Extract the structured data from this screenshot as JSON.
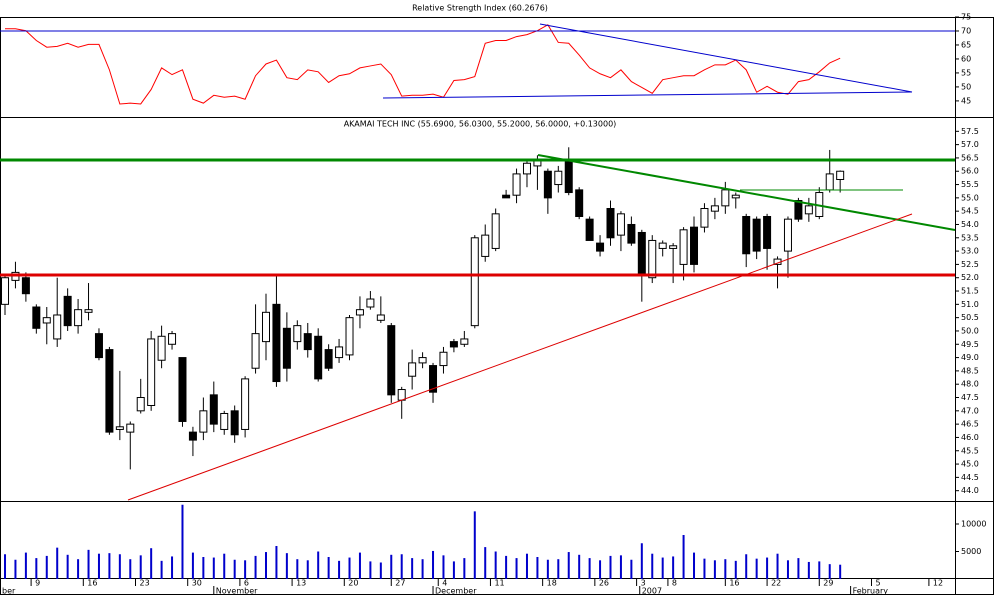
{
  "chart_data": [
    {
      "type": "line",
      "title": "Relative Strength Index (60.2676)",
      "x": [
        0,
        1,
        2,
        3,
        4,
        5,
        6,
        7,
        8,
        9,
        10,
        11,
        12,
        13,
        14,
        15,
        16,
        17,
        18,
        19,
        20,
        21,
        22,
        23,
        24,
        25,
        26,
        27,
        28,
        29,
        30,
        31,
        32,
        33,
        34,
        35,
        36,
        37,
        38,
        39,
        40,
        41,
        42,
        43,
        44,
        45,
        46,
        47,
        48,
        49,
        50,
        51,
        52,
        53,
        54,
        55,
        56,
        57,
        58,
        59,
        60,
        61,
        62,
        63,
        64,
        65,
        66,
        67,
        68,
        69,
        70,
        71,
        72,
        73,
        74,
        75,
        76,
        77,
        78,
        79,
        80
      ],
      "series": [
        {
          "color": "#ff0000",
          "values": [
            70.8,
            70.8,
            70.1,
            66.6,
            64.2,
            64.5,
            65.6,
            64.2,
            65.2,
            65.2,
            56.1,
            43.9,
            44.2,
            43.9,
            49.1,
            56.8,
            54.4,
            56.1,
            45.6,
            44.2,
            47.0,
            46.3,
            46.7,
            45.6,
            54.0,
            58.2,
            59.6,
            53.3,
            52.6,
            56.1,
            55.4,
            51.6,
            54.0,
            54.7,
            56.8,
            57.5,
            58.2,
            54.4,
            46.7,
            47.0,
            47.0,
            47.4,
            46.3,
            52.3,
            52.6,
            53.7,
            65.6,
            66.6,
            66.6,
            68.0,
            68.7,
            70.1,
            72.2,
            65.9,
            65.6,
            61.4,
            56.8,
            54.7,
            53.3,
            56.1,
            51.9,
            49.8,
            47.7,
            52.6,
            53.3,
            54.0,
            54.0,
            56.1,
            57.9,
            57.9,
            59.6,
            56.1,
            48.1,
            50.2,
            48.1,
            47.4,
            51.9,
            52.6,
            55.4,
            58.6,
            60.27
          ]
        }
      ],
      "xlim": [
        -0.48,
        91.0
      ],
      "ylim": [
        39.6,
        75
      ],
      "yticks": [
        45,
        50,
        55,
        60,
        65,
        70,
        75
      ]
    },
    {
      "type": "candlestick",
      "title": "AKAMAI TECH INC (55.6900, 56.0300, 55.2000, 56.0000, +0.13000)",
      "x": [
        0,
        1,
        2,
        3,
        4,
        5,
        6,
        7,
        8,
        9,
        10,
        11,
        12,
        13,
        14,
        15,
        16,
        17,
        18,
        19,
        20,
        21,
        22,
        23,
        24,
        25,
        26,
        27,
        28,
        29,
        30,
        31,
        32,
        33,
        34,
        35,
        36,
        37,
        38,
        39,
        40,
        41,
        42,
        43,
        44,
        45,
        46,
        47,
        48,
        49,
        50,
        51,
        52,
        53,
        54,
        55,
        56,
        57,
        58,
        59,
        60,
        61,
        62,
        63,
        64,
        65,
        66,
        67,
        68,
        69,
        70,
        71,
        72,
        73,
        74,
        75,
        76,
        77,
        78,
        79,
        80
      ],
      "open": [
        51.0,
        51.9,
        52.0,
        50.9,
        50.3,
        49.7,
        51.3,
        50.2,
        50.7,
        49.9,
        49.3,
        46.3,
        46.2,
        47.0,
        47.2,
        48.9,
        49.5,
        49.0,
        46.2,
        46.2,
        47.6,
        46.3,
        47.0,
        46.3,
        48.6,
        49.6,
        51.0,
        50.1,
        49.6,
        49.9,
        49.8,
        49.3,
        49.0,
        49.1,
        50.6,
        50.9,
        50.4,
        50.2,
        47.4,
        48.3,
        48.8,
        48.7,
        48.7,
        49.6,
        49.5,
        50.2,
        52.8,
        53.1,
        55.1,
        55.1,
        55.9,
        56.2,
        56.0,
        55.5,
        56.4,
        55.3,
        54.2,
        53.3,
        54.6,
        53.6,
        54.0,
        53.7,
        52.0,
        53.1,
        53.1,
        52.5,
        53.9,
        53.9,
        54.5,
        54.7,
        55.0,
        54.3,
        54.2,
        54.3,
        52.5,
        53.0,
        54.9,
        54.4,
        54.3,
        55.3,
        55.69
      ],
      "high": [
        52.1,
        52.6,
        52.2,
        51.0,
        50.9,
        52.0,
        51.6,
        51.2,
        51.8,
        50.1,
        49.4,
        48.5,
        46.6,
        48.2,
        50.0,
        50.2,
        50.0,
        49.0,
        46.4,
        47.5,
        48.1,
        47.0,
        47.2,
        48.3,
        51.0,
        51.4,
        52.1,
        50.7,
        50.4,
        50.3,
        50.1,
        49.5,
        49.7,
        50.6,
        51.3,
        51.5,
        51.3,
        50.3,
        47.9,
        49.3,
        49.2,
        48.8,
        49.4,
        49.7,
        50.0,
        53.6,
        54.0,
        54.6,
        55.3,
        56.1,
        56.4,
        56.6,
        56.1,
        56.2,
        56.9,
        55.4,
        54.3,
        53.6,
        54.9,
        54.5,
        54.3,
        53.8,
        53.6,
        53.4,
        53.3,
        53.9,
        54.3,
        54.8,
        55.0,
        55.6,
        55.2,
        54.4,
        54.3,
        54.4,
        52.8,
        54.3,
        55.0,
        55.0,
        55.4,
        56.8,
        56.03
      ],
      "low": [
        50.6,
        51.6,
        51.1,
        49.9,
        49.5,
        49.4,
        50.0,
        49.9,
        50.4,
        48.9,
        46.1,
        45.9,
        44.8,
        46.9,
        47.0,
        48.6,
        49.3,
        46.4,
        45.3,
        45.9,
        46.2,
        46.1,
        45.8,
        46.0,
        48.4,
        48.9,
        47.9,
        48.1,
        49.3,
        49.0,
        48.1,
        48.5,
        48.8,
        48.9,
        50.1,
        50.8,
        50.3,
        47.3,
        46.7,
        47.8,
        48.6,
        47.3,
        48.4,
        49.2,
        49.4,
        50.1,
        52.6,
        53.0,
        55.0,
        54.8,
        55.4,
        55.3,
        54.4,
        55.2,
        55.1,
        54.2,
        53.4,
        52.8,
        53.2,
        53.0,
        53.2,
        51.1,
        51.8,
        52.8,
        51.8,
        51.9,
        52.2,
        53.7,
        54.2,
        54.4,
        54.6,
        52.4,
        52.7,
        52.3,
        51.6,
        52.0,
        54.1,
        54.1,
        54.2,
        55.2,
        55.2
      ],
      "close": [
        52.0,
        52.2,
        51.4,
        50.1,
        50.5,
        50.6,
        50.2,
        50.8,
        50.8,
        49.0,
        46.2,
        46.4,
        46.5,
        47.5,
        49.7,
        49.8,
        49.9,
        46.6,
        45.9,
        47.0,
        46.5,
        46.9,
        46.1,
        48.2,
        49.9,
        50.7,
        48.1,
        48.6,
        50.2,
        49.3,
        48.2,
        48.6,
        49.4,
        50.5,
        50.8,
        51.2,
        50.6,
        47.6,
        47.8,
        48.8,
        49.0,
        47.7,
        49.2,
        49.4,
        49.7,
        53.5,
        53.6,
        54.4,
        55.0,
        55.9,
        56.3,
        56.4,
        55.0,
        56.0,
        55.2,
        54.3,
        53.4,
        53.0,
        53.5,
        54.4,
        53.3,
        52.1,
        53.4,
        53.3,
        53.2,
        53.8,
        52.5,
        54.6,
        54.7,
        55.3,
        55.1,
        52.9,
        53.0,
        53.1,
        52.7,
        54.2,
        54.2,
        54.7,
        55.2,
        55.9,
        56.0
      ],
      "up_color": "#ffffff",
      "down_color": "#000000",
      "xlim": [
        -0.48,
        91.0
      ],
      "ylim": [
        43.65,
        58.0
      ],
      "yticks": [
        {
          "value": 44,
          "label": "44.0"
        },
        44.5,
        {
          "value": 45,
          "label": "45.0"
        },
        45.5,
        {
          "value": 46,
          "label": "46.0"
        },
        46.5,
        {
          "value": 47,
          "label": "47.0"
        },
        47.5,
        {
          "value": 48,
          "label": "48.0"
        },
        48.5,
        {
          "value": 49,
          "label": "49.0"
        },
        49.5,
        {
          "value": 50,
          "label": "50.0"
        },
        50.5,
        {
          "value": 51,
          "label": "51.0"
        },
        51.5,
        {
          "value": 52,
          "label": "52.0"
        },
        52.5,
        {
          "value": 53,
          "label": "53.0"
        },
        53.5,
        {
          "value": 54,
          "label": "54.0"
        },
        54.5,
        {
          "value": 55,
          "label": "55.0"
        },
        55.5,
        {
          "value": 56,
          "label": "56.0"
        },
        56.5,
        {
          "value": 57,
          "label": "57.0"
        },
        57.5
      ]
    },
    {
      "type": "bar",
      "x": [
        0,
        1,
        2,
        3,
        4,
        5,
        6,
        7,
        8,
        9,
        10,
        11,
        12,
        13,
        14,
        15,
        16,
        17,
        18,
        19,
        20,
        21,
        22,
        23,
        24,
        25,
        26,
        27,
        28,
        29,
        30,
        31,
        32,
        33,
        34,
        35,
        36,
        37,
        38,
        39,
        40,
        41,
        42,
        43,
        44,
        45,
        46,
        47,
        48,
        49,
        50,
        51,
        52,
        53,
        54,
        55,
        56,
        57,
        58,
        59,
        60,
        61,
        62,
        63,
        64,
        65,
        66,
        67,
        68,
        69,
        70,
        71,
        72,
        73,
        74,
        75,
        76,
        77,
        78,
        79,
        80
      ],
      "values": [
        4500,
        3500,
        4800,
        3800,
        4200,
        5700,
        4400,
        3600,
        5300,
        4600,
        4700,
        4500,
        3600,
        4300,
        5600,
        3300,
        4100,
        13500,
        4800,
        4000,
        3900,
        4600,
        3500,
        3400,
        4200,
        4900,
        6000,
        4700,
        3600,
        3400,
        5000,
        4000,
        3300,
        3900,
        4800,
        3200,
        3000,
        4400,
        4500,
        3800,
        3600,
        5100,
        4300,
        3200,
        3800,
        12300,
        5800,
        5000,
        4200,
        3800,
        4600,
        4000,
        3500,
        3600,
        4900,
        4400,
        3800,
        3400,
        4200,
        4300,
        3500,
        6500,
        4600,
        3900,
        4100,
        8000,
        4800,
        3700,
        3400,
        3600,
        3300,
        4500,
        3700,
        3900,
        4600,
        3400,
        3800,
        3100,
        3200,
        2700,
        2600
      ],
      "color": "#0000cc",
      "xlim": [
        -0.48,
        91.0
      ],
      "ylim": [
        0,
        14000
      ],
      "yticks": [
        5000,
        10000
      ],
      "xticks": [
        {
          "value": 2.5,
          "label": "9"
        },
        {
          "value": 7.5,
          "label": "16"
        },
        {
          "value": 12.5,
          "label": "23"
        },
        {
          "value": 17.5,
          "label": "30"
        },
        {
          "value": 22.5,
          "label": "6"
        },
        {
          "value": 27.5,
          "label": "13"
        },
        {
          "value": 32.5,
          "label": "20"
        },
        {
          "value": 37,
          "label": "27"
        },
        {
          "value": 41.5,
          "label": "4"
        },
        {
          "value": 46.5,
          "label": "11"
        },
        {
          "value": 51.5,
          "label": "18"
        },
        {
          "value": 56.5,
          "label": "26"
        },
        {
          "value": 60.5,
          "label": "3"
        },
        {
          "value": 63.5,
          "label": "8"
        },
        {
          "value": 69,
          "label": "16"
        },
        {
          "value": 73,
          "label": "22"
        },
        {
          "value": 78,
          "label": "29"
        },
        {
          "value": 83,
          "label": "5"
        },
        {
          "value": 88.5,
          "label": "12"
        }
      ],
      "month_ticks": [
        {
          "value": -0.48,
          "label": "ber"
        },
        {
          "value": 20,
          "label": "November"
        },
        {
          "value": 41,
          "label": "December"
        },
        {
          "value": 60.8,
          "label": "2007"
        },
        {
          "value": 81,
          "label": "February"
        }
      ]
    }
  ]
}
